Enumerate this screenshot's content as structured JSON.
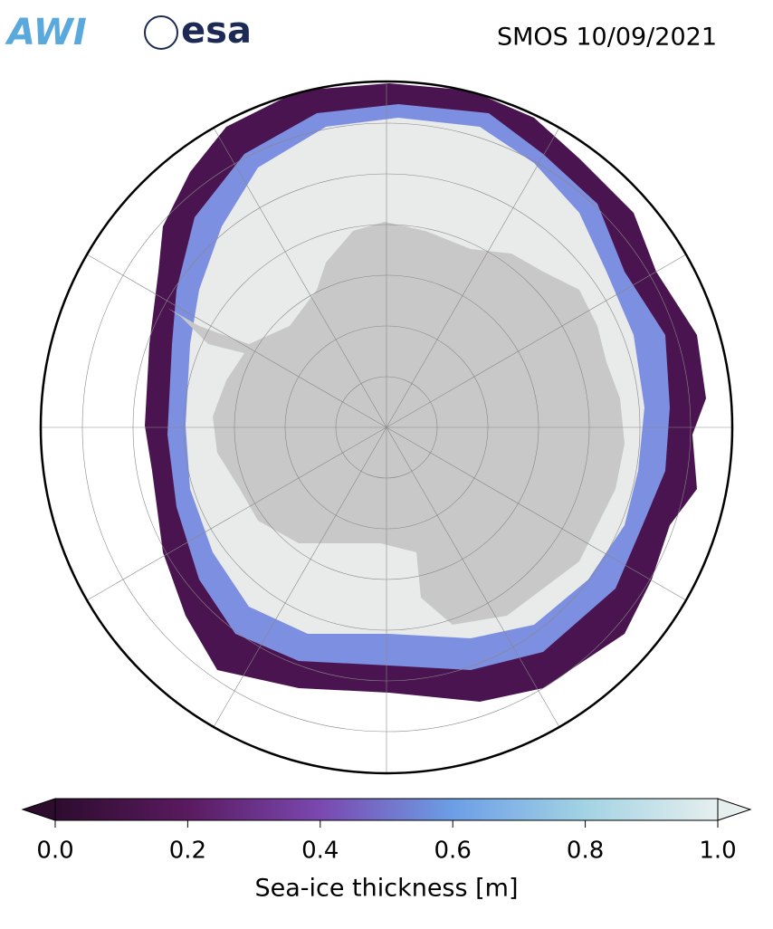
{
  "header": {
    "logos": [
      "AWI",
      "esa"
    ],
    "title": "SMOS 10/09/2021"
  },
  "colorbar": {
    "label": "Sea-ice thickness [m]",
    "lim": [
      0,
      1
    ],
    "ticks": [
      {
        "value": 0,
        "label": "0.0"
      },
      {
        "value": 0.2,
        "label": "0.2"
      },
      {
        "value": 0.4,
        "label": "0.4"
      },
      {
        "value": 0.6,
        "label": "0.6"
      },
      {
        "value": 0.8,
        "label": "0.8"
      },
      {
        "value": 1,
        "label": "1.0"
      }
    ],
    "colors": [
      "#2d0c2e",
      "#5a1a60",
      "#7a48b0",
      "#6c9ee6",
      "#a3d3e4",
      "#e6efee"
    ]
  }
}
